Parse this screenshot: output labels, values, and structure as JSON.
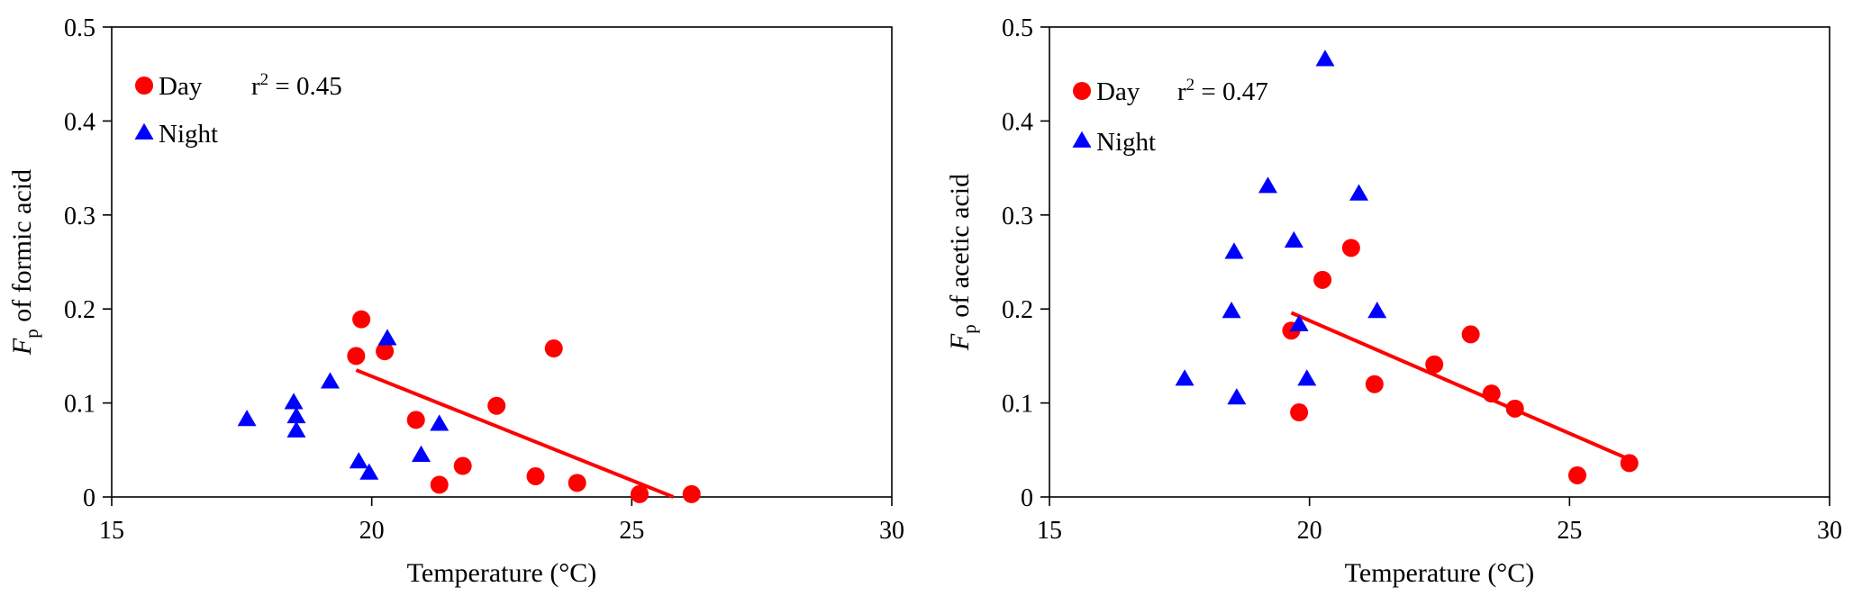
{
  "chart_data": [
    {
      "type": "scatter",
      "title": "",
      "xlabel": "Temperature (°C)",
      "ylabel_italic": "F",
      "ylabel_sub": "p",
      "ylabel_rest": " of formic acid",
      "xlim": [
        15,
        30
      ],
      "ylim": [
        0,
        0.5
      ],
      "xticks": [
        "15",
        "20",
        "25",
        "30"
      ],
      "yticks": [
        "0",
        "0.1",
        "0.2",
        "0.3",
        "0.4",
        "0.5"
      ],
      "grid": false,
      "legend_position": "top-left",
      "r2_prefix": "r",
      "r2_sup": "2",
      "r2_value": " = 0.45",
      "series": [
        {
          "name": "Day",
          "marker": "circle",
          "color": "#ff0000",
          "points": [
            [
              19.7,
              0.15
            ],
            [
              19.8,
              0.189
            ],
            [
              20.25,
              0.155
            ],
            [
              20.85,
              0.082
            ],
            [
              21.3,
              0.013
            ],
            [
              21.75,
              0.033
            ],
            [
              22.4,
              0.097
            ],
            [
              23.15,
              0.022
            ],
            [
              23.5,
              0.158
            ],
            [
              23.95,
              0.015
            ],
            [
              25.15,
              0.003
            ],
            [
              26.15,
              0.003
            ]
          ]
        },
        {
          "name": "Night",
          "marker": "triangle",
          "color": "#0000ff",
          "points": [
            [
              17.6,
              0.082
            ],
            [
              18.5,
              0.1
            ],
            [
              18.55,
              0.085
            ],
            [
              18.55,
              0.07
            ],
            [
              19.2,
              0.122
            ],
            [
              19.75,
              0.037
            ],
            [
              19.95,
              0.025
            ],
            [
              20.3,
              0.168
            ],
            [
              20.95,
              0.044
            ],
            [
              21.3,
              0.077
            ]
          ]
        }
      ],
      "fit_line": {
        "color": "#ff0000",
        "x": [
          19.7,
          25.8
        ],
        "y": [
          0.135,
          0.0
        ]
      }
    },
    {
      "type": "scatter",
      "title": "",
      "xlabel": "Temperature (°C)",
      "ylabel_italic": "F",
      "ylabel_sub": "p",
      "ylabel_rest": " of acetic acid",
      "xlim": [
        15,
        30
      ],
      "ylim": [
        0,
        0.5
      ],
      "xticks": [
        "15",
        "20",
        "25",
        "30"
      ],
      "yticks": [
        "0",
        "0.1",
        "0.2",
        "0.3",
        "0.4",
        "0.5"
      ],
      "grid": false,
      "legend_position": "top-left",
      "r2_prefix": "r",
      "r2_sup": "2",
      "r2_value": " = 0.47",
      "series": [
        {
          "name": "Day",
          "marker": "circle",
          "color": "#ff0000",
          "points": [
            [
              19.65,
              0.177
            ],
            [
              19.8,
              0.09
            ],
            [
              20.25,
              0.231
            ],
            [
              20.8,
              0.265
            ],
            [
              21.25,
              0.12
            ],
            [
              22.4,
              0.141
            ],
            [
              23.1,
              0.173
            ],
            [
              23.5,
              0.11
            ],
            [
              23.95,
              0.094
            ],
            [
              25.15,
              0.023
            ],
            [
              26.15,
              0.036
            ]
          ]
        },
        {
          "name": "Night",
          "marker": "triangle",
          "color": "#0000ff",
          "points": [
            [
              17.6,
              0.125
            ],
            [
              18.5,
              0.197
            ],
            [
              18.55,
              0.26
            ],
            [
              18.6,
              0.105
            ],
            [
              19.2,
              0.33
            ],
            [
              19.7,
              0.272
            ],
            [
              19.8,
              0.183
            ],
            [
              19.95,
              0.125
            ],
            [
              20.3,
              0.465
            ],
            [
              20.95,
              0.322
            ],
            [
              21.3,
              0.197
            ]
          ]
        }
      ],
      "fit_line": {
        "color": "#ff0000",
        "x": [
          19.65,
          26.15
        ],
        "y": [
          0.196,
          0.04
        ]
      }
    }
  ]
}
